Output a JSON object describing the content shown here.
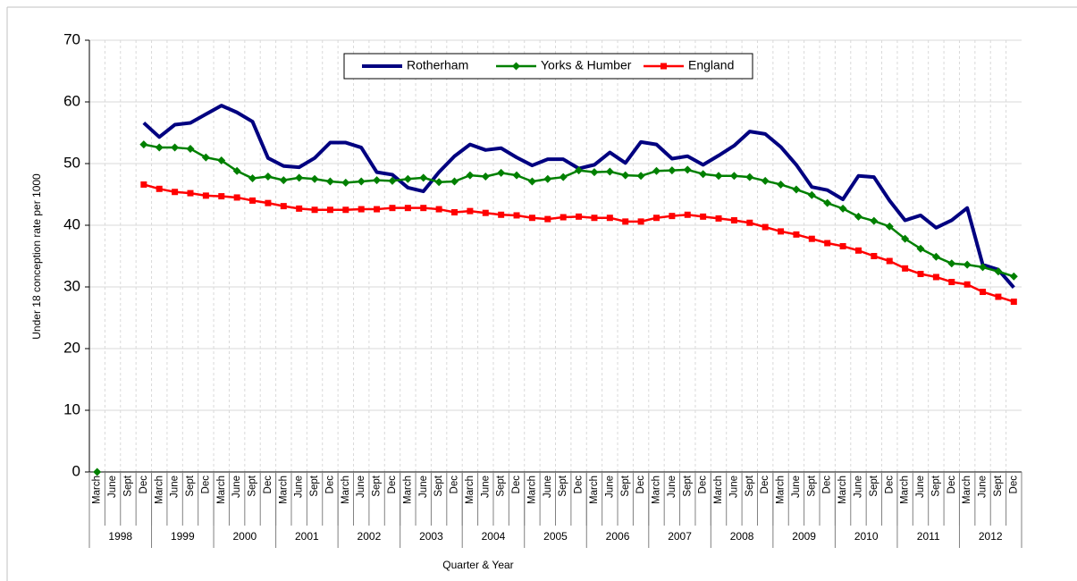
{
  "chart_data": {
    "type": "line",
    "ylabel": "Under 18 conception rate per 1000",
    "xlabel": "Quarter & Year",
    "categories": [
      "March",
      "June",
      "Sept",
      "Dec",
      "March",
      "June",
      "Sept",
      "Dec",
      "March",
      "June",
      "Sept",
      "Dec",
      "March",
      "June",
      "Sept",
      "Dec",
      "March",
      "June",
      "Sept",
      "Dec",
      "March",
      "June",
      "Sept",
      "Dec",
      "March",
      "June",
      "Sept",
      "Dec",
      "March",
      "June",
      "Sept",
      "Dec",
      "March",
      "June",
      "Sept",
      "Dec",
      "March",
      "June",
      "Sept",
      "Dec",
      "March",
      "June",
      "Sept",
      "Dec",
      "March",
      "June",
      "Sept",
      "Dec",
      "March",
      "June",
      "Sept",
      "Dec",
      "March",
      "June",
      "Sept",
      "Dec",
      "March",
      "June",
      "Sept",
      "Dec"
    ],
    "x_groups": [
      "1998",
      "1999",
      "2000",
      "2001",
      "2002",
      "2003",
      "2004",
      "2005",
      "2006",
      "2007",
      "2008",
      "2009",
      "2010",
      "2011",
      "2012"
    ],
    "ylim": [
      0,
      70
    ],
    "yticks": [
      0,
      10,
      20,
      30,
      40,
      50,
      60,
      70
    ],
    "grid": true,
    "legend": "top",
    "series": [
      {
        "name": "Rotherham",
        "color": "#000080",
        "marker": "none",
        "values": [
          null,
          null,
          null,
          56.6,
          54.3,
          56.3,
          56.6,
          58.0,
          59.4,
          58.3,
          56.8,
          50.9,
          49.6,
          49.4,
          50.9,
          53.4,
          53.4,
          52.6,
          48.6,
          48.2,
          46.1,
          45.5,
          48.6,
          51.2,
          53.1,
          52.2,
          52.5,
          51.0,
          49.7,
          50.7,
          50.7,
          49.2,
          49.8,
          51.8,
          50.1,
          53.5,
          53.1,
          50.8,
          51.2,
          49.8,
          51.3,
          52.9,
          55.2,
          54.8,
          52.7,
          49.8,
          46.2,
          45.7,
          44.2,
          48.0,
          47.8,
          44.0,
          40.8,
          41.6,
          39.6,
          40.8,
          42.8,
          33.6,
          32.8,
          29.9
        ]
      },
      {
        "name": "Yorks & Humber",
        "color": "#008000",
        "marker": "diamond",
        "values": [
          0,
          null,
          null,
          53.1,
          52.6,
          52.6,
          52.4,
          51.0,
          50.5,
          48.8,
          47.6,
          47.9,
          47.3,
          47.7,
          47.5,
          47.1,
          46.9,
          47.1,
          47.3,
          47.2,
          47.5,
          47.7,
          47.0,
          47.1,
          48.1,
          47.9,
          48.5,
          48.1,
          47.1,
          47.5,
          47.8,
          48.9,
          48.6,
          48.7,
          48.1,
          48.0,
          48.8,
          48.9,
          49.0,
          48.3,
          48.0,
          48.0,
          47.8,
          47.2,
          46.6,
          45.8,
          44.9,
          43.6,
          42.7,
          41.4,
          40.7,
          39.8,
          37.8,
          36.2,
          34.9,
          33.8,
          33.6,
          33.2,
          32.5,
          31.7
        ]
      },
      {
        "name": "England",
        "color": "#ff0000",
        "marker": "square",
        "values": [
          null,
          null,
          null,
          46.6,
          45.9,
          45.4,
          45.2,
          44.8,
          44.7,
          44.5,
          44.0,
          43.6,
          43.1,
          42.7,
          42.5,
          42.5,
          42.5,
          42.6,
          42.6,
          42.8,
          42.8,
          42.8,
          42.6,
          42.1,
          42.3,
          42.0,
          41.7,
          41.6,
          41.2,
          41.0,
          41.3,
          41.4,
          41.2,
          41.2,
          40.6,
          40.6,
          41.2,
          41.5,
          41.7,
          41.4,
          41.1,
          40.8,
          40.4,
          39.7,
          39.0,
          38.5,
          37.8,
          37.1,
          36.6,
          35.9,
          35.0,
          34.2,
          33.0,
          32.1,
          31.6,
          30.8,
          30.4,
          29.2,
          28.4,
          27.6
        ]
      }
    ]
  }
}
